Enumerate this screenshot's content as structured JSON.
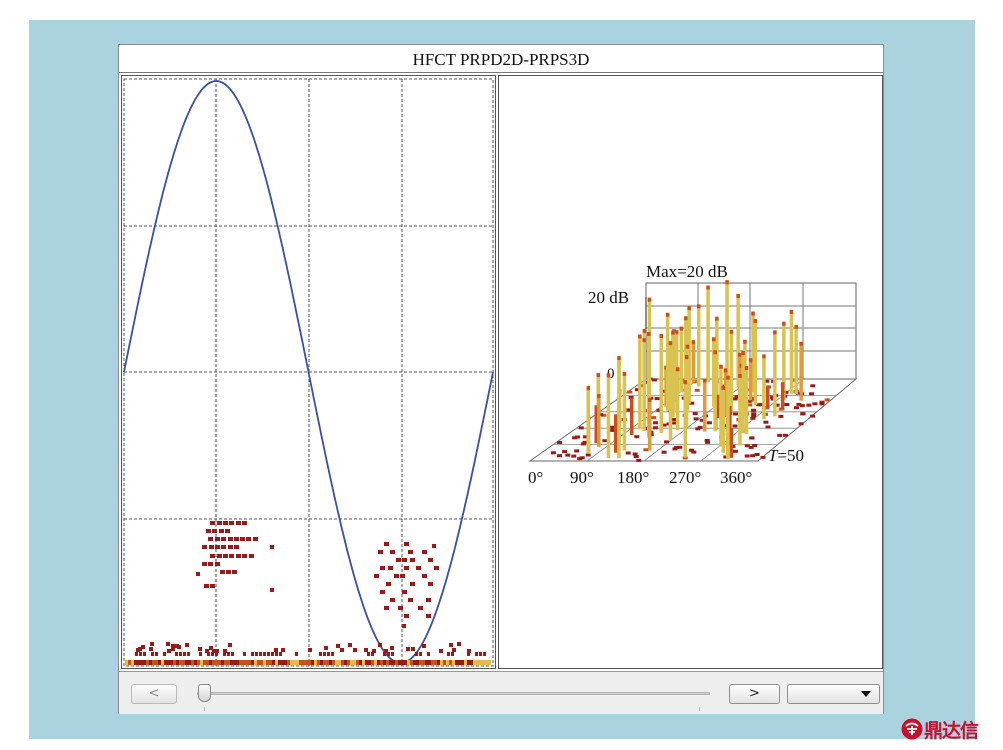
{
  "window": {
    "title": "HFCT PRPD2D-PRPS3D"
  },
  "prps3d": {
    "max_label": "Max=20 dB",
    "z_label": "20 dB",
    "z_zero_label": "0",
    "x_ticks": [
      "0°",
      "90°",
      "180°",
      "270°",
      "360°"
    ],
    "t_label_prefix": "T",
    "t_label_value": "=50"
  },
  "controls": {
    "prev_label": "<",
    "next_label": ">",
    "dropdown_value": "",
    "slider_position": 0.0
  },
  "watermark": {
    "text": "鼎达信"
  },
  "colors": {
    "background": "#abd3df",
    "sine": "#3a4fa6",
    "pulse_dark": "#9a1a17",
    "pulse_mid": "#c94f1c",
    "pulse_light": "#e8b94a",
    "bar_tall": "#d9c24f",
    "brand": "#c8102e"
  },
  "icons": {
    "dropdown_arrow": "triangle-down-icon",
    "logo": "brand-logo-icon"
  }
}
